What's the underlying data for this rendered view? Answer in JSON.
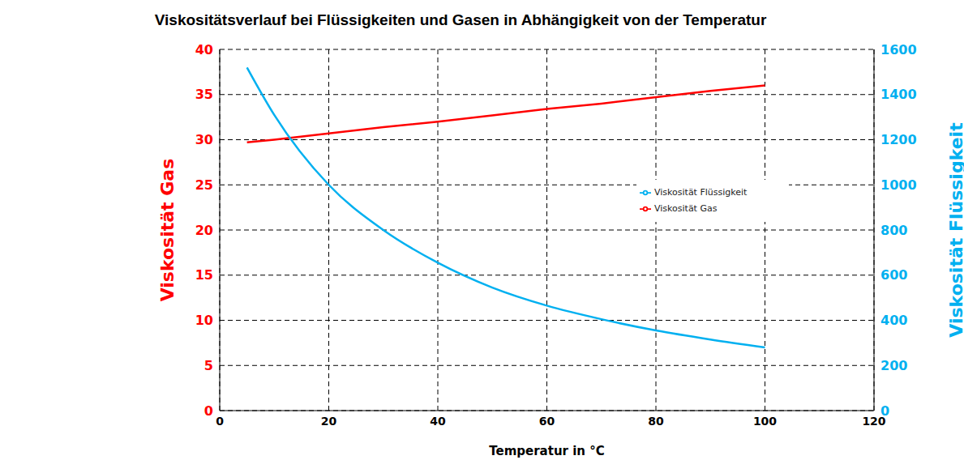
{
  "chart_data": {
    "type": "line",
    "title": "Viskositätsverlauf bei Flüssigkeiten und Gasen in Abhängigkeit von der Temperatur",
    "x_label": "Temperatur in °C",
    "y_label": "Viskosität Gas",
    "y2_label": "Viskosität Flüssigkeit",
    "x": [
      5,
      10,
      20,
      30,
      40,
      50,
      60,
      70,
      80,
      90,
      100
    ],
    "series": [
      {
        "name": "Viskosität Gas",
        "color": "#ff0000",
        "values": [
          29.7,
          30.0,
          30.7,
          31.4,
          32.0,
          32.7,
          33.4,
          34.0,
          34.7,
          35.4,
          36.0
        ]
      },
      {
        "name": "Viskosität Flüssigkeit",
        "color": "#00b0f0",
        "axis": "y2",
        "values": [
          1520,
          1310,
          1000,
          800,
          655,
          545,
          465,
          405,
          355,
          315,
          280
        ]
      }
    ],
    "xlim": [
      0,
      120
    ],
    "xticks": [
      0,
      20,
      40,
      60,
      80,
      100,
      120
    ],
    "ylim": [
      0,
      40
    ],
    "yticks": [
      0,
      5,
      10,
      15,
      20,
      25,
      30,
      35,
      40
    ],
    "y2lim": [
      0,
      1600
    ],
    "y2ticks": [
      0,
      200,
      400,
      600,
      800,
      1000,
      1200,
      1400,
      1600
    ],
    "grid": true,
    "legend": "right"
  }
}
